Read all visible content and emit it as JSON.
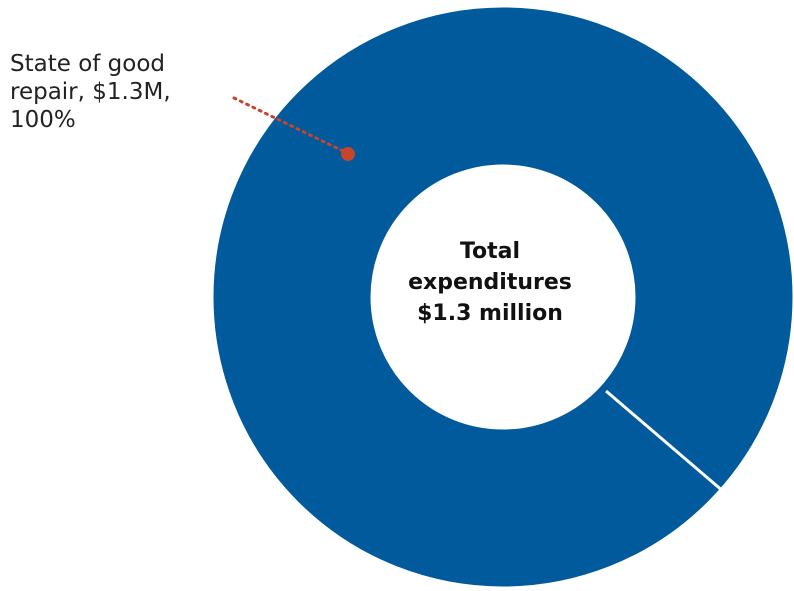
{
  "chart_data": {
    "type": "pie",
    "style": "donut",
    "slices": [
      {
        "label": "State of good repair",
        "value_label": "$1.3M",
        "percent_label": "100%",
        "value": 1.3,
        "percent": 100
      }
    ],
    "center_label": {
      "line1": "Total",
      "line2": "expenditures",
      "line3": "$1.3 million"
    },
    "colors": {
      "slice": "#005a9c",
      "separator": "#ffffff",
      "callout_dot": "#c8442b",
      "callout_line": "#c8442b"
    }
  },
  "callout": {
    "line1": "State of good",
    "line2": "repair, $1.3M,",
    "line3": "100%"
  }
}
